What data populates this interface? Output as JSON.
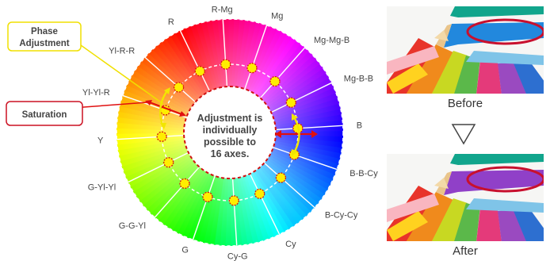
{
  "wheel": {
    "axes": [
      {
        "label": "R",
        "hue": 0
      },
      {
        "label": "R-Mg",
        "hue": 337.5
      },
      {
        "label": "Mg",
        "hue": 315
      },
      {
        "label": "Mg-Mg-B",
        "hue": 292.5
      },
      {
        "label": "Mg-B-B",
        "hue": 270
      },
      {
        "label": "B",
        "hue": 247.5
      },
      {
        "label": "B-B-Cy",
        "hue": 225
      },
      {
        "label": "B-Cy-Cy",
        "hue": 202.5
      },
      {
        "label": "Cy",
        "hue": 180
      },
      {
        "label": "Cy-G",
        "hue": 150
      },
      {
        "label": "G",
        "hue": 120
      },
      {
        "label": "G-G-Yl",
        "hue": 100
      },
      {
        "label": "G-Yl-Yl",
        "hue": 80
      },
      {
        "label": "Y",
        "hue": 60
      },
      {
        "label": "Yl-Yl-R",
        "hue": 40
      },
      {
        "label": "Yl-R-R",
        "hue": 20
      }
    ],
    "center_text": [
      "Adjustment is",
      "individually",
      "possible to",
      "16 axes."
    ]
  },
  "callouts": {
    "phase": [
      "Phase",
      "Adjustment"
    ],
    "saturation": "Saturation"
  },
  "colors": {
    "phase_border": "#f0e000",
    "saturation_border": "#cc1122",
    "marker": "#ffee00",
    "marker_border": "#d11111",
    "arrow_red": "#e01010",
    "arrow_yellow": "#f2e600",
    "ellipse": "#c8102e"
  },
  "photos": {
    "before_caption": "Before",
    "after_caption": "After",
    "before_highlight_pencil": "blue",
    "after_highlight_pencil": "purple"
  }
}
